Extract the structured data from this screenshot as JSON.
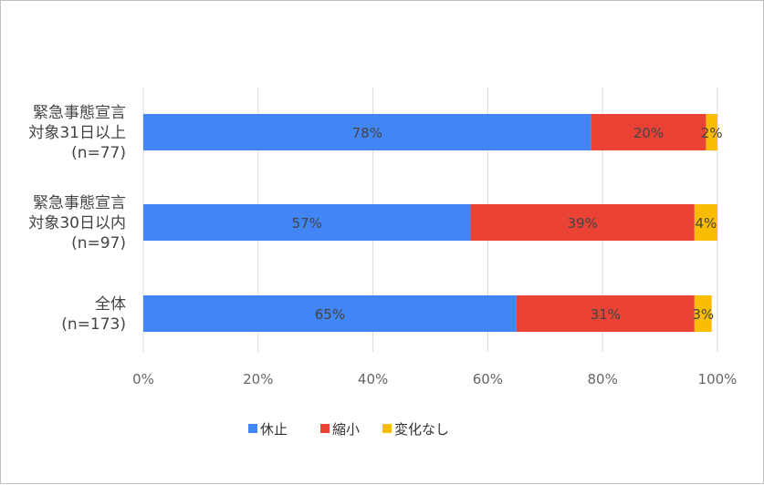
{
  "chart_data": {
    "type": "bar",
    "orientation": "horizontal",
    "stacked": true,
    "percent": true,
    "categories": [
      [
        "緊急事態宣言",
        "対象31日以上",
        "(n=77)"
      ],
      [
        "緊急事態宣言",
        "対象30日以内",
        "(n=97)"
      ],
      [
        "全体",
        "(n=173)"
      ]
    ],
    "series": [
      {
        "name": "休止",
        "color": "#4285f4",
        "values": [
          78,
          57,
          65
        ],
        "labels": [
          "78%",
          "57%",
          "65%"
        ]
      },
      {
        "name": "縮小",
        "color": "#ea4335",
        "values": [
          20,
          39,
          31
        ],
        "labels": [
          "20%",
          "39%",
          "31%"
        ]
      },
      {
        "name": "変化なし",
        "color": "#fbbc04",
        "values": [
          2,
          4,
          3
        ],
        "labels": [
          "2%",
          "4%",
          "3%"
        ]
      }
    ],
    "xlim": [
      0,
      100
    ],
    "xticks": [
      "0%",
      "20%",
      "40%",
      "60%",
      "80%",
      "100%"
    ],
    "grid": true,
    "legend_position": "bottom"
  }
}
